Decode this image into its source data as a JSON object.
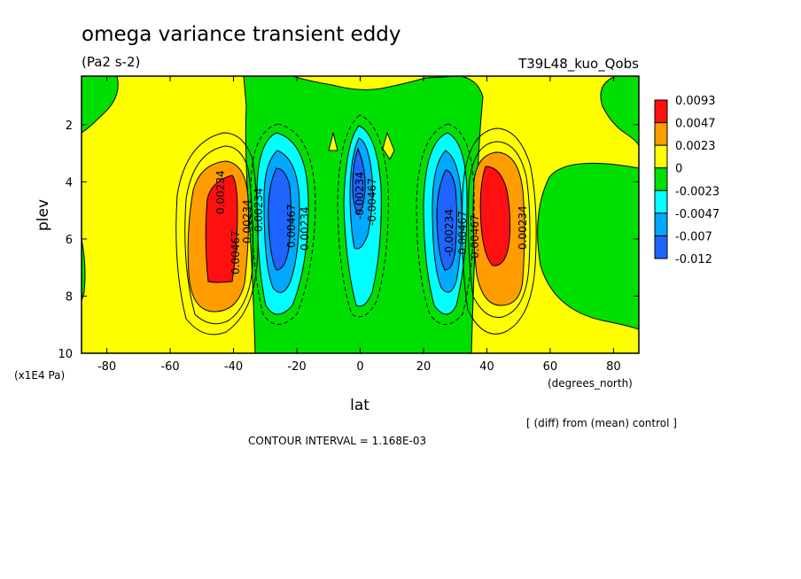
{
  "chart_data": {
    "type": "filled-contour",
    "title": "omega variance transient eddy",
    "units": "(Pa2 s-2)",
    "run_label": "T39L48_kuo_Qobs",
    "xlabel": "lat",
    "ylabel": "plev",
    "x_units": "(degrees_north)",
    "y_units": "(x1E4 Pa)",
    "xlim": [
      -88,
      88
    ],
    "ylim": [
      10,
      0.3
    ],
    "x_ticks": [
      "-80",
      "-60",
      "-40",
      "-20",
      "0",
      "20",
      "40",
      "60",
      "80"
    ],
    "x_tick_values": [
      -80,
      -60,
      -40,
      -20,
      0,
      20,
      40,
      60,
      80
    ],
    "y_ticks": [
      "2",
      "4",
      "6",
      "8",
      "10"
    ],
    "y_tick_values": [
      2,
      4,
      6,
      8,
      10
    ],
    "colorbar": {
      "labels": [
        "0.0093",
        "0.0047",
        "0.0023",
        "0",
        "-0.0023",
        "-0.0047",
        "-0.007",
        "-0.012"
      ],
      "colors": [
        "#ff1010",
        "#ff9c00",
        "#ffff00",
        "#00e000",
        "#00ffff",
        "#00a8ff",
        "#1e64ff"
      ]
    },
    "contour_labels": [
      "0.00467",
      "0.00234",
      "0.00467",
      "0.00234",
      "0.00234",
      "-0.00234",
      "-0.00467",
      "-0.00234",
      "-0.00467",
      "0.00234",
      "0.00467",
      "0.00234"
    ],
    "footer_note": "[ (diff) from (mean) control ]",
    "contour_interval": "CONTOUR INTERVAL = 1.168E-03",
    "features": [
      {
        "name": "positive max SH",
        "lat": -44,
        "plev": 5.5,
        "value": 0.0093
      },
      {
        "name": "negative min SH",
        "lat": -27,
        "plev": 5.0,
        "value": -0.012
      },
      {
        "name": "negative min EQ",
        "lat": 0,
        "plev": 4.0,
        "value": -0.007
      },
      {
        "name": "negative min NH",
        "lat": 28,
        "plev": 5.0,
        "value": -0.012
      },
      {
        "name": "positive max NH",
        "lat": 46,
        "plev": 5.0,
        "value": 0.0093
      }
    ]
  }
}
